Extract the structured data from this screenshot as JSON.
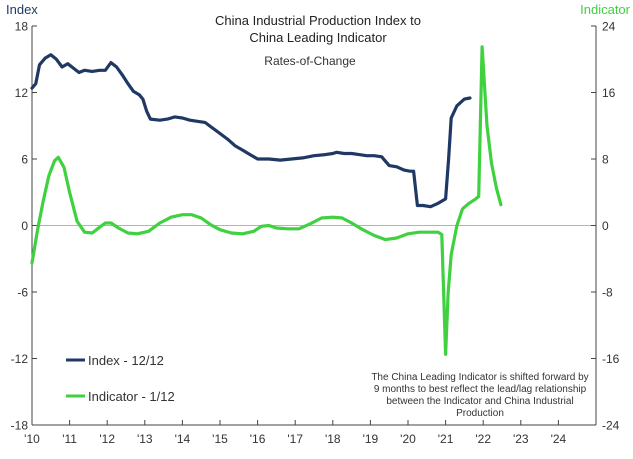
{
  "chart_data": {
    "type": "line",
    "title_lines": [
      "China Industrial Production Index to",
      "China Leading Indicator"
    ],
    "subtitle": "Rates-of-Change",
    "left_axis_label": "Index",
    "right_axis_label": "Indicator",
    "left_ylim": [
      -18,
      18
    ],
    "left_ticks": [
      "18",
      "12",
      "6",
      "0",
      "-6",
      "-12",
      "-18"
    ],
    "right_ylim": [
      -24,
      24
    ],
    "right_ticks": [
      "24",
      "16",
      "8",
      "0",
      "-8",
      "-16",
      "-24"
    ],
    "x_range": [
      2010,
      2025
    ],
    "x_ticks": [
      {
        "year": 2010,
        "label": "'10"
      },
      {
        "year": 2011,
        "label": "'11"
      },
      {
        "year": 2012,
        "label": "'12"
      },
      {
        "year": 2013,
        "label": "'13"
      },
      {
        "year": 2014,
        "label": "'14"
      },
      {
        "year": 2015,
        "label": "'15"
      },
      {
        "year": 2016,
        "label": "'16"
      },
      {
        "year": 2017,
        "label": "'17"
      },
      {
        "year": 2018,
        "label": "'18"
      },
      {
        "year": 2019,
        "label": "'19"
      },
      {
        "year": 2020,
        "label": "'20"
      },
      {
        "year": 2021,
        "label": "'21"
      },
      {
        "year": 2022,
        "label": "'22"
      },
      {
        "year": 2023,
        "label": "'23"
      },
      {
        "year": 2024,
        "label": "'24"
      }
    ],
    "grid": false,
    "legend_placement": "bottom-left",
    "annotation_lines": [
      "The China Leading Indicator is shifted forward by",
      "9 months to best reflect the lead/lag relationship",
      "between the Indicator and China Industrial",
      "Production"
    ],
    "series": [
      {
        "name": "Index - 12/12",
        "axis": "left",
        "color": "#1f3864",
        "points": [
          [
            2010.0,
            12.4
          ],
          [
            2010.1,
            12.8
          ],
          [
            2010.2,
            14.5
          ],
          [
            2010.35,
            15.1
          ],
          [
            2010.5,
            15.4
          ],
          [
            2010.65,
            15.0
          ],
          [
            2010.8,
            14.3
          ],
          [
            2010.95,
            14.6
          ],
          [
            2011.1,
            14.2
          ],
          [
            2011.25,
            13.8
          ],
          [
            2011.4,
            14.0
          ],
          [
            2011.6,
            13.9
          ],
          [
            2011.8,
            14.0
          ],
          [
            2011.95,
            14.0
          ],
          [
            2012.1,
            14.7
          ],
          [
            2012.25,
            14.3
          ],
          [
            2012.4,
            13.6
          ],
          [
            2012.55,
            12.8
          ],
          [
            2012.7,
            12.1
          ],
          [
            2012.85,
            11.8
          ],
          [
            2012.95,
            11.4
          ],
          [
            2013.05,
            10.3
          ],
          [
            2013.15,
            9.6
          ],
          [
            2013.4,
            9.5
          ],
          [
            2013.6,
            9.6
          ],
          [
            2013.8,
            9.8
          ],
          [
            2014.0,
            9.7
          ],
          [
            2014.2,
            9.5
          ],
          [
            2014.4,
            9.4
          ],
          [
            2014.6,
            9.3
          ],
          [
            2014.8,
            8.8
          ],
          [
            2015.0,
            8.3
          ],
          [
            2015.2,
            7.8
          ],
          [
            2015.4,
            7.2
          ],
          [
            2015.6,
            6.8
          ],
          [
            2015.8,
            6.4
          ],
          [
            2016.0,
            6.0
          ],
          [
            2016.3,
            6.0
          ],
          [
            2016.6,
            5.9
          ],
          [
            2016.9,
            6.0
          ],
          [
            2017.2,
            6.1
          ],
          [
            2017.5,
            6.3
          ],
          [
            2017.8,
            6.4
          ],
          [
            2018.0,
            6.5
          ],
          [
            2018.1,
            6.6
          ],
          [
            2018.3,
            6.5
          ],
          [
            2018.5,
            6.5
          ],
          [
            2018.7,
            6.4
          ],
          [
            2018.9,
            6.3
          ],
          [
            2019.1,
            6.3
          ],
          [
            2019.3,
            6.2
          ],
          [
            2019.4,
            5.8
          ],
          [
            2019.5,
            5.4
          ],
          [
            2019.7,
            5.3
          ],
          [
            2019.9,
            5.0
          ],
          [
            2020.05,
            4.9
          ],
          [
            2020.15,
            4.9
          ],
          [
            2020.25,
            1.8
          ],
          [
            2020.4,
            1.8
          ],
          [
            2020.6,
            1.7
          ],
          [
            2020.8,
            2.0
          ],
          [
            2020.95,
            2.3
          ],
          [
            2021.0,
            2.4
          ],
          [
            2021.08,
            6.0
          ],
          [
            2021.15,
            9.7
          ],
          [
            2021.3,
            10.8
          ],
          [
            2021.5,
            11.4
          ],
          [
            2021.65,
            11.5
          ]
        ]
      },
      {
        "name": "Indicator - 1/12",
        "axis": "right",
        "color": "#3fd13f",
        "points": [
          [
            2010.0,
            -4.5
          ],
          [
            2010.15,
            -0.5
          ],
          [
            2010.3,
            3.0
          ],
          [
            2010.45,
            6.0
          ],
          [
            2010.6,
            7.8
          ],
          [
            2010.7,
            8.2
          ],
          [
            2010.85,
            7.0
          ],
          [
            2011.0,
            4.0
          ],
          [
            2011.2,
            0.5
          ],
          [
            2011.4,
            -0.8
          ],
          [
            2011.6,
            -0.9
          ],
          [
            2011.8,
            -0.2
          ],
          [
            2011.95,
            0.3
          ],
          [
            2012.1,
            0.3
          ],
          [
            2012.3,
            -0.3
          ],
          [
            2012.55,
            -0.9
          ],
          [
            2012.8,
            -1.0
          ],
          [
            2013.1,
            -0.7
          ],
          [
            2013.4,
            0.3
          ],
          [
            2013.7,
            1.0
          ],
          [
            2014.0,
            1.3
          ],
          [
            2014.25,
            1.3
          ],
          [
            2014.5,
            0.9
          ],
          [
            2014.75,
            0.1
          ],
          [
            2015.0,
            -0.5
          ],
          [
            2015.3,
            -0.9
          ],
          [
            2015.6,
            -1.0
          ],
          [
            2015.9,
            -0.7
          ],
          [
            2016.1,
            -0.1
          ],
          [
            2016.3,
            0.0
          ],
          [
            2016.5,
            -0.3
          ],
          [
            2016.8,
            -0.4
          ],
          [
            2017.1,
            -0.4
          ],
          [
            2017.4,
            0.2
          ],
          [
            2017.7,
            0.9
          ],
          [
            2018.0,
            1.0
          ],
          [
            2018.25,
            0.9
          ],
          [
            2018.5,
            0.3
          ],
          [
            2018.8,
            -0.5
          ],
          [
            2019.1,
            -1.2
          ],
          [
            2019.4,
            -1.7
          ],
          [
            2019.7,
            -1.5
          ],
          [
            2020.0,
            -1.0
          ],
          [
            2020.3,
            -0.8
          ],
          [
            2020.6,
            -0.8
          ],
          [
            2020.8,
            -0.8
          ],
          [
            2020.9,
            -1.1
          ],
          [
            2021.0,
            -15.5
          ],
          [
            2021.07,
            -8.0
          ],
          [
            2021.15,
            -3.5
          ],
          [
            2021.3,
            0.0
          ],
          [
            2021.45,
            2.0
          ],
          [
            2021.6,
            2.6
          ],
          [
            2021.8,
            3.2
          ],
          [
            2021.88,
            3.5
          ],
          [
            2021.97,
            21.5
          ],
          [
            2022.1,
            12.0
          ],
          [
            2022.22,
            7.5
          ],
          [
            2022.35,
            4.5
          ],
          [
            2022.47,
            2.5
          ]
        ]
      }
    ]
  }
}
